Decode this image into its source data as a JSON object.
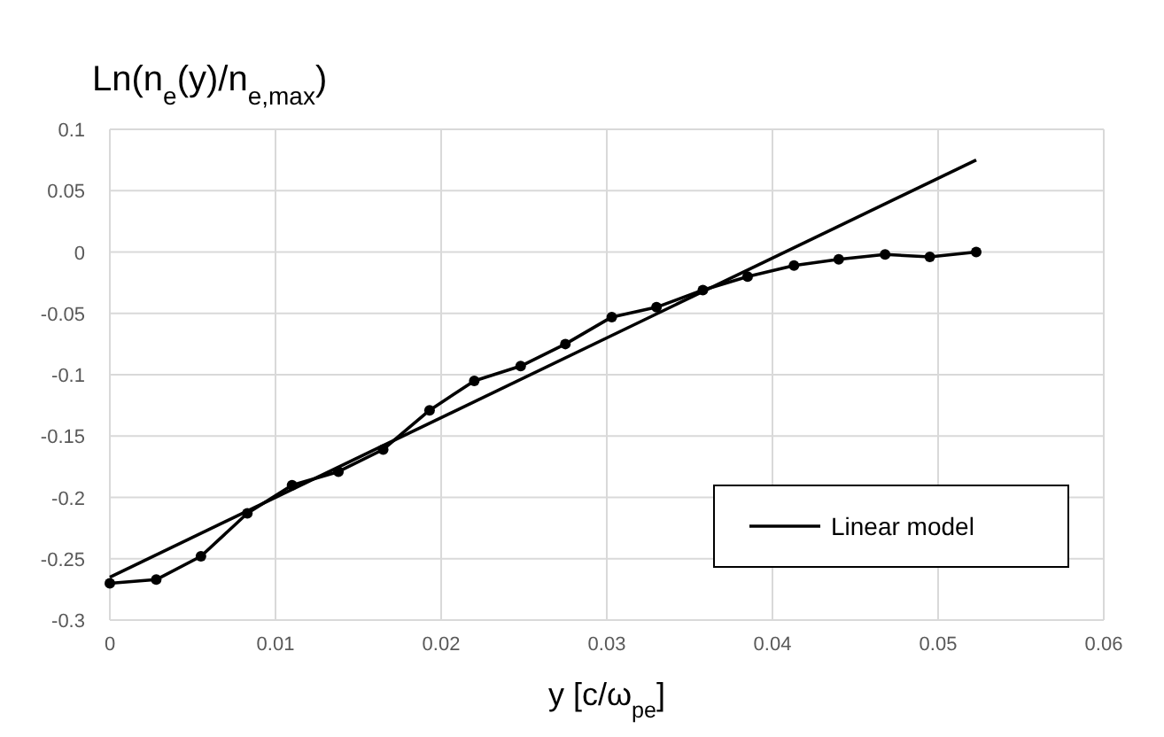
{
  "chart_data": {
    "type": "line",
    "ylabel": "Ln(n$_{e}$(y)/n$_{e,max}$)",
    "xlabel": "y  [c/ω$_{pe}$]",
    "series": [
      {
        "color": "#000000",
        "marker": "circle",
        "x": [
          0,
          0.0028,
          0.0055,
          0.0083,
          0.011,
          0.0138,
          0.0165,
          0.0193,
          0.022,
          0.0248,
          0.0275,
          0.0303,
          0.033,
          0.0358,
          0.0385,
          0.0413,
          0.044,
          0.0468,
          0.0495,
          0.0523
        ],
        "values": [
          -0.27,
          -0.267,
          -0.248,
          -0.213,
          -0.19,
          -0.179,
          -0.161,
          -0.129,
          -0.105,
          -0.093,
          -0.075,
          -0.053,
          -0.045,
          -0.031,
          -0.02,
          -0.011,
          -0.006,
          -0.002,
          -0.004,
          0
        ]
      },
      {
        "name": "Linear model",
        "color": "#000000",
        "marker": "none",
        "x": [
          0,
          0.0523
        ],
        "values": [
          -0.265,
          0.075
        ]
      }
    ],
    "xlim": [
      0,
      0.06
    ],
    "xticks": [
      0,
      0.01,
      0.02,
      0.03,
      0.04,
      0.05,
      0.06
    ],
    "ylim": [
      -0.3,
      0.1
    ],
    "yticks": [
      -0.3,
      -0.25,
      -0.2,
      -0.15,
      -0.1,
      -0.05,
      0,
      0.05,
      0.1
    ],
    "grid": true,
    "legend": "bottom right"
  }
}
